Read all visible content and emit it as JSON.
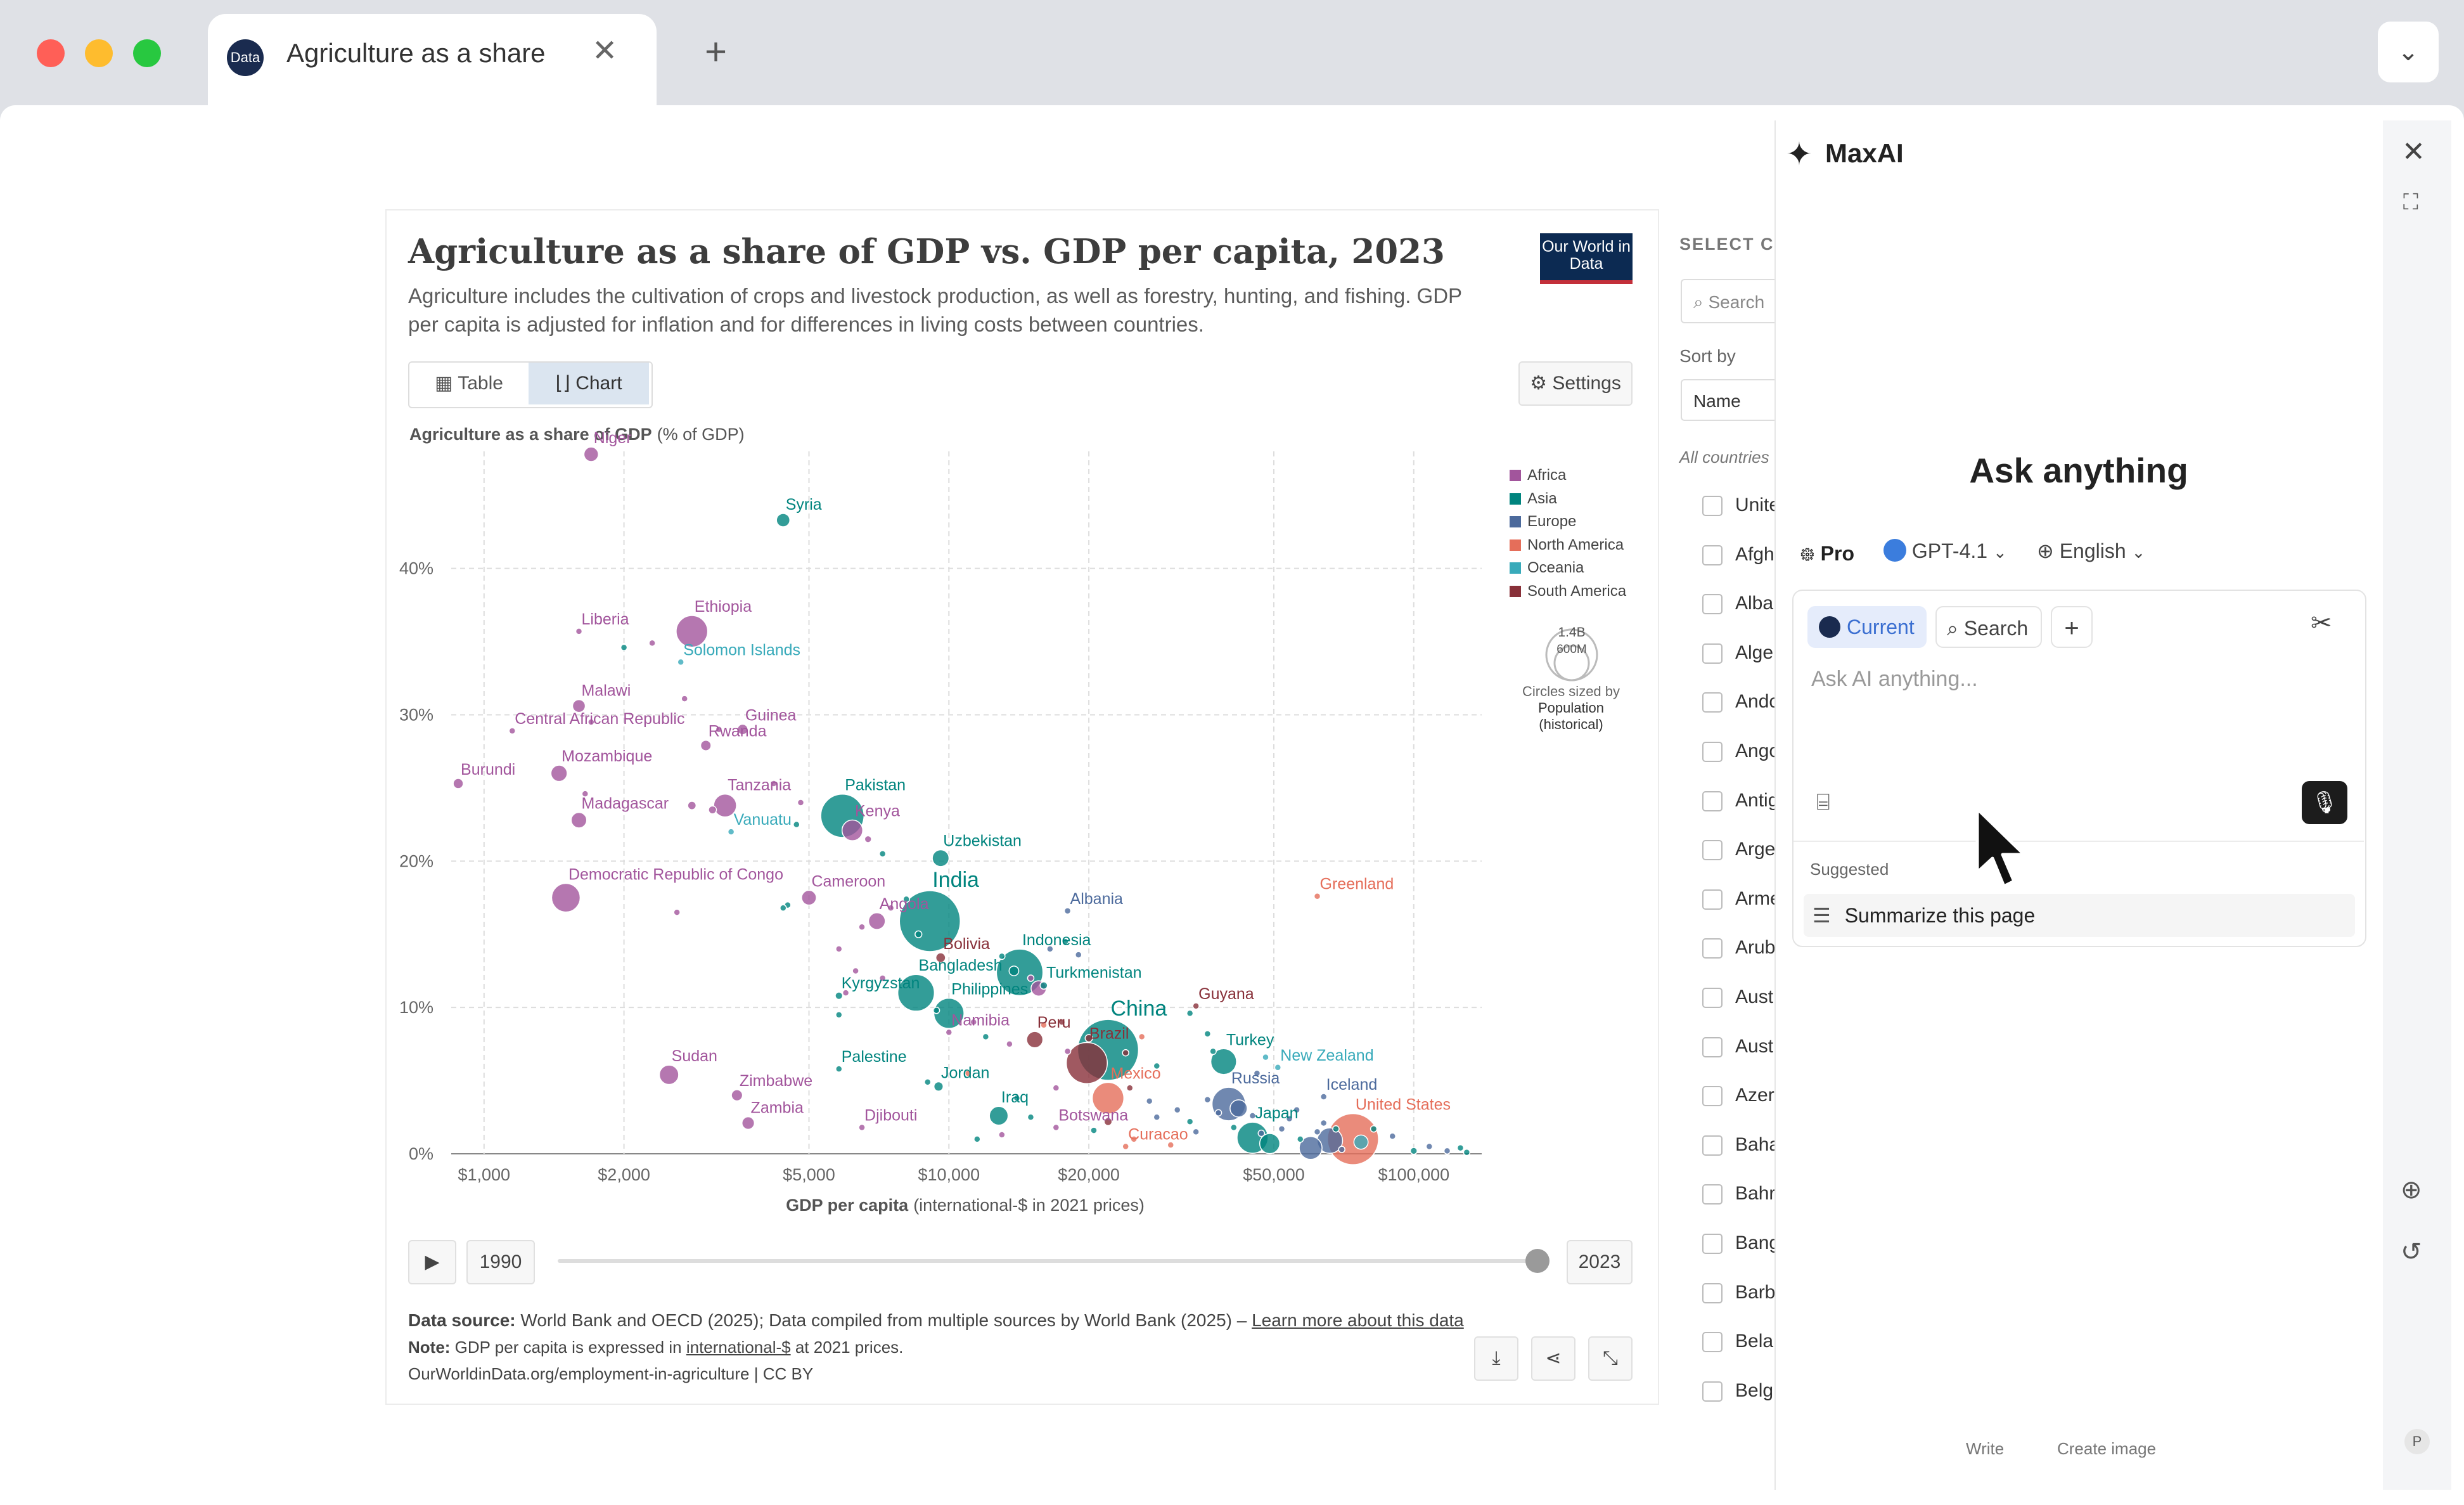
{
  "browser": {
    "tab_title": "Agriculture as a share",
    "favicon_text": "Data",
    "colors": {
      "close": "#ff5f57",
      "minimize": "#febc2e",
      "maximize": "#28c840"
    }
  },
  "owid": {
    "title": "Agriculture as a share of GDP vs. GDP per capita, 2023",
    "subtitle": "Agriculture includes the cultivation of crops and livestock production, as well as forestry, hunting, and fishing. GDP per capita is adjusted for inflation and for differences in living costs between countries.",
    "logo": "Our World in Data",
    "tabs": {
      "table": "Table",
      "chart": "Chart"
    },
    "settings": "Settings",
    "timeline": {
      "start": "1990",
      "end": "2023",
      "progress": 1.0
    },
    "footer": {
      "source_label": "Data source:",
      "source_text": "World Bank and OECD (2025); Data compiled from multiple sources by World Bank (2025) – ",
      "learn_more": "Learn more about this data",
      "note_label": "Note:",
      "note_text_1": "GDP per capita is expressed in ",
      "note_link": "international-$",
      "note_text_2": " at 2021 prices.",
      "url": "OurWorldinData.org/employment-in-agriculture | CC BY"
    },
    "legend_size": {
      "top": "1.4B",
      "bottom": "600M",
      "caption_1": "Circles sized by",
      "caption_2": "Population",
      "caption_3": "(historical)"
    },
    "sidebar": {
      "heading": "SELECT CO",
      "search": "Search",
      "sort_label": "Sort by",
      "sort_value": "Name",
      "all_label": "All countries",
      "countries": [
        "Unite",
        "Afgh",
        "Alba",
        "Alge",
        "Ando",
        "Ango",
        "Antig",
        "Arge",
        "Arme",
        "Arub",
        "Aust",
        "Aust",
        "Azer",
        "Baha",
        "Bahr",
        "Bang",
        "Barb",
        "Belar",
        "Belgi"
      ]
    }
  },
  "maxai": {
    "brand": "MaxAI",
    "heading": "Ask anything",
    "mode": "Pro",
    "model": "GPT-4.1",
    "language": "English",
    "chip_current": "Current",
    "chip_search": "Search",
    "placeholder": "Ask AI anything...",
    "suggested_label": "Suggested",
    "suggestion": "Summarize this page",
    "bottom_write": "Write",
    "bottom_image": "Create image",
    "avatar_letter": "P"
  },
  "chart_data": {
    "type": "scatter",
    "title": "Agriculture as a share of GDP vs. GDP per capita, 2023",
    "ylabel": "Agriculture as a share of GDP",
    "ylabel_unit": "(% of GDP)",
    "xlabel": "GDP per capita",
    "xlabel_unit": "(international-$ in 2021 prices)",
    "x_scale": "log",
    "xlim": [
      850,
      140000
    ],
    "ylim": [
      0,
      48
    ],
    "x_ticks": [
      {
        "v": 1000,
        "label": "$1,000"
      },
      {
        "v": 2000,
        "label": "$2,000"
      },
      {
        "v": 5000,
        "label": "$5,000"
      },
      {
        "v": 10000,
        "label": "$10,000"
      },
      {
        "v": 20000,
        "label": "$20,000"
      },
      {
        "v": 50000,
        "label": "$50,000"
      },
      {
        "v": 100000,
        "label": "$100,000"
      }
    ],
    "y_ticks": [
      {
        "v": 0,
        "label": "0%"
      },
      {
        "v": 10,
        "label": "10%"
      },
      {
        "v": 20,
        "label": "20%"
      },
      {
        "v": 30,
        "label": "30%"
      },
      {
        "v": 40,
        "label": "40%"
      }
    ],
    "grid": true,
    "legend_position": "right",
    "regions": [
      {
        "name": "Africa",
        "color": "#a2559c"
      },
      {
        "name": "Asia",
        "color": "#00847e"
      },
      {
        "name": "Europe",
        "color": "#4c6a9c"
      },
      {
        "name": "North America",
        "color": "#e56e5a"
      },
      {
        "name": "Oceania",
        "color": "#38aaba"
      },
      {
        "name": "South America",
        "color": "#883039"
      }
    ],
    "labeled_points": [
      {
        "name": "Niger",
        "x": 1700,
        "y": 47.8,
        "region": "Africa",
        "pop": 27
      },
      {
        "name": "Syria",
        "x": 4400,
        "y": 43.3,
        "region": "Asia",
        "pop": 23
      },
      {
        "name": "Liberia",
        "x": 1600,
        "y": 35.7,
        "region": "Africa",
        "pop": 5
      },
      {
        "name": "Ethiopia",
        "x": 2800,
        "y": 35.7,
        "region": "Africa",
        "pop": 128
      },
      {
        "name": "Solomon Islands",
        "x": 2650,
        "y": 33.6,
        "region": "Oceania",
        "pop": 0.8
      },
      {
        "name": "Malawi",
        "x": 1600,
        "y": 30.6,
        "region": "Africa",
        "pop": 21
      },
      {
        "name": "Central African Republic",
        "x": 1150,
        "y": 28.9,
        "region": "Africa",
        "pop": 5
      },
      {
        "name": "Guinea",
        "x": 3600,
        "y": 29.0,
        "region": "Africa",
        "pop": 14
      },
      {
        "name": "Rwanda",
        "x": 3000,
        "y": 27.9,
        "region": "Africa",
        "pop": 14
      },
      {
        "name": "Burundi",
        "x": 880,
        "y": 25.3,
        "region": "Africa",
        "pop": 13
      },
      {
        "name": "Mozambique",
        "x": 1450,
        "y": 26.0,
        "region": "Africa",
        "pop": 34
      },
      {
        "name": "Tanzania",
        "x": 3300,
        "y": 23.8,
        "region": "Africa",
        "pop": 67
      },
      {
        "name": "Pakistan",
        "x": 5900,
        "y": 23.1,
        "region": "Asia",
        "pop": 240
      },
      {
        "name": "Madagascar",
        "x": 1600,
        "y": 22.8,
        "region": "Africa",
        "pop": 31
      },
      {
        "name": "Kenya",
        "x": 6200,
        "y": 22.1,
        "region": "Africa",
        "pop": 55
      },
      {
        "name": "Vanuatu",
        "x": 3400,
        "y": 22.0,
        "region": "Oceania",
        "pop": 0.3
      },
      {
        "name": "Uzbekistan",
        "x": 9600,
        "y": 20.2,
        "region": "Asia",
        "pop": 36
      },
      {
        "name": "India",
        "x": 9100,
        "y": 15.9,
        "region": "Asia",
        "pop": 1430
      },
      {
        "name": "Democratic Republic of Congo",
        "x": 1500,
        "y": 17.5,
        "region": "Africa",
        "pop": 105
      },
      {
        "name": "Cameroon",
        "x": 5000,
        "y": 17.5,
        "region": "Africa",
        "pop": 28
      },
      {
        "name": "Albania",
        "x": 18000,
        "y": 16.6,
        "region": "Europe",
        "pop": 2.8
      },
      {
        "name": "Greenland",
        "x": 62000,
        "y": 17.6,
        "region": "North America",
        "pop": 0.06
      },
      {
        "name": "Angola",
        "x": 7000,
        "y": 15.9,
        "region": "Africa",
        "pop": 36
      },
      {
        "name": "Bolivia",
        "x": 9600,
        "y": 13.4,
        "region": "South America",
        "pop": 12
      },
      {
        "name": "Indonesia",
        "x": 14200,
        "y": 12.4,
        "region": "Asia",
        "pop": 278
      },
      {
        "name": "Bangladesh",
        "x": 8500,
        "y": 11.0,
        "region": "Asia",
        "pop": 172
      },
      {
        "name": "Turkmenistan",
        "x": 16000,
        "y": 11.5,
        "region": "Asia",
        "pop": 7
      },
      {
        "name": "Kyrgyzstan",
        "x": 5800,
        "y": 10.8,
        "region": "Asia",
        "pop": 7
      },
      {
        "name": "Philippines",
        "x": 10000,
        "y": 9.6,
        "region": "Asia",
        "pop": 117
      },
      {
        "name": "China",
        "x": 22000,
        "y": 7.1,
        "region": "Asia",
        "pop": 1420
      },
      {
        "name": "Guyana",
        "x": 34000,
        "y": 10.1,
        "region": "South America",
        "pop": 0.8
      },
      {
        "name": "Namibia",
        "x": 10000,
        "y": 8.3,
        "region": "Africa",
        "pop": 3
      },
      {
        "name": "Peru",
        "x": 15300,
        "y": 7.8,
        "region": "South America",
        "pop": 34
      },
      {
        "name": "Brazil",
        "x": 19800,
        "y": 6.2,
        "region": "South America",
        "pop": 216
      },
      {
        "name": "Turkey",
        "x": 39000,
        "y": 6.3,
        "region": "Asia",
        "pop": 85
      },
      {
        "name": "New Zealand",
        "x": 51000,
        "y": 5.9,
        "region": "Oceania",
        "pop": 5
      },
      {
        "name": "Sudan",
        "x": 2500,
        "y": 5.4,
        "region": "Africa",
        "pop": 48
      },
      {
        "name": "Palestine",
        "x": 5800,
        "y": 5.8,
        "region": "Asia",
        "pop": 5
      },
      {
        "name": "Jordan",
        "x": 9500,
        "y": 4.6,
        "region": "Asia",
        "pop": 11
      },
      {
        "name": "Mexico",
        "x": 22000,
        "y": 3.8,
        "region": "North America",
        "pop": 128
      },
      {
        "name": "Russia",
        "x": 40000,
        "y": 3.4,
        "region": "Europe",
        "pop": 144
      },
      {
        "name": "Iceland",
        "x": 64000,
        "y": 3.9,
        "region": "Europe",
        "pop": 0.4
      },
      {
        "name": "Zimbabwe",
        "x": 3500,
        "y": 4.0,
        "region": "Africa",
        "pop": 16
      },
      {
        "name": "Zambia",
        "x": 3700,
        "y": 2.1,
        "region": "Africa",
        "pop": 20
      },
      {
        "name": "Iraq",
        "x": 12800,
        "y": 2.6,
        "region": "Asia",
        "pop": 45
      },
      {
        "name": "Djibouti",
        "x": 6500,
        "y": 1.8,
        "region": "Africa",
        "pop": 1.1
      },
      {
        "name": "Botswana",
        "x": 17000,
        "y": 1.8,
        "region": "Africa",
        "pop": 2.7
      },
      {
        "name": "United States",
        "x": 74000,
        "y": 1.0,
        "region": "North America",
        "pop": 335
      },
      {
        "name": "Japan",
        "x": 45000,
        "y": 1.1,
        "region": "Asia",
        "pop": 124
      },
      {
        "name": "Curacao",
        "x": 24000,
        "y": 0.5,
        "region": "North America",
        "pop": 0.2
      }
    ],
    "unlabeled_points": [
      [
        2000,
        34.6,
        "Asia",
        5
      ],
      [
        2300,
        34.9,
        "Africa",
        3
      ],
      [
        2700,
        31.1,
        "Africa",
        4
      ],
      [
        1700,
        29.5,
        "Africa",
        3
      ],
      [
        3200,
        29.0,
        "Africa",
        3
      ],
      [
        1650,
        24.6,
        "Africa",
        3
      ],
      [
        3100,
        23.5,
        "Africa",
        8
      ],
      [
        2800,
        23.8,
        "Africa",
        9
      ],
      [
        4200,
        25.3,
        "Africa",
        5
      ],
      [
        4800,
        24.0,
        "Africa",
        4
      ],
      [
        6700,
        21.5,
        "Africa",
        6
      ],
      [
        4700,
        22.5,
        "Asia",
        4
      ],
      [
        7200,
        20.5,
        "Asia",
        3
      ],
      [
        2600,
        16.5,
        "Africa",
        4
      ],
      [
        4500,
        17.0,
        "Asia",
        3
      ],
      [
        4400,
        16.8,
        "Asia",
        3
      ],
      [
        5800,
        14.0,
        "Africa",
        3
      ],
      [
        6500,
        15.5,
        "Africa",
        4
      ],
      [
        7500,
        16.8,
        "Africa",
        3
      ],
      [
        8100,
        17.4,
        "Asia",
        3
      ],
      [
        8600,
        15.0,
        "Asia",
        6
      ],
      [
        6000,
        11.0,
        "Africa",
        4
      ],
      [
        6300,
        12.5,
        "Africa",
        3
      ],
      [
        7200,
        12.0,
        "Africa",
        3
      ],
      [
        13000,
        13.5,
        "Asia",
        4
      ],
      [
        13800,
        12.5,
        "Asia",
        12
      ],
      [
        15000,
        12.0,
        "Africa",
        5
      ],
      [
        15600,
        11.3,
        "Africa",
        30
      ],
      [
        16500,
        14.0,
        "Europe",
        3
      ],
      [
        17800,
        14.5,
        "Asia",
        3
      ],
      [
        19000,
        13.6,
        "Europe",
        3
      ],
      [
        5800,
        9.5,
        "Asia",
        3
      ],
      [
        9400,
        9.8,
        "Asia",
        5
      ],
      [
        11300,
        9.0,
        "Africa",
        3
      ],
      [
        12000,
        8.0,
        "Asia",
        5
      ],
      [
        13500,
        7.5,
        "Africa",
        3
      ],
      [
        16000,
        8.8,
        "North America",
        4
      ],
      [
        17500,
        9.0,
        "South America",
        3
      ],
      [
        18000,
        7.0,
        "Africa",
        3
      ],
      [
        20000,
        7.9,
        "South America",
        7
      ],
      [
        24000,
        6.9,
        "South America",
        3
      ],
      [
        26000,
        8.0,
        "North America",
        4
      ],
      [
        28000,
        6.0,
        "Asia",
        4
      ],
      [
        33000,
        9.6,
        "Asia",
        3
      ],
      [
        36000,
        8.2,
        "Asia",
        3
      ],
      [
        37000,
        7.0,
        "Asia",
        4
      ],
      [
        46000,
        5.5,
        "Europe",
        3
      ],
      [
        48000,
        6.6,
        "Oceania",
        3
      ],
      [
        9000,
        4.9,
        "Asia",
        3
      ],
      [
        11000,
        5.5,
        "North America",
        3
      ],
      [
        14000,
        3.8,
        "Asia",
        4
      ],
      [
        17000,
        4.5,
        "Africa",
        3
      ],
      [
        15000,
        2.5,
        "Asia",
        4
      ],
      [
        22000,
        2.2,
        "South America",
        8
      ],
      [
        24500,
        4.5,
        "South America",
        3
      ],
      [
        27000,
        3.6,
        "Europe",
        3
      ],
      [
        28000,
        2.5,
        "Europe",
        4
      ],
      [
        31000,
        3.0,
        "Europe",
        3
      ],
      [
        33000,
        2.2,
        "Asia",
        3
      ],
      [
        34000,
        1.5,
        "Europe",
        3
      ],
      [
        36000,
        3.7,
        "Europe",
        4
      ],
      [
        38000,
        2.8,
        "Europe",
        4
      ],
      [
        41000,
        1.8,
        "Asia",
        4
      ],
      [
        42000,
        3.1,
        "Europe",
        38
      ],
      [
        45000,
        2.6,
        "Europe",
        3
      ],
      [
        47000,
        1.4,
        "Europe",
        3
      ],
      [
        49000,
        0.7,
        "Asia",
        52
      ],
      [
        52000,
        1.7,
        "Europe",
        3
      ],
      [
        54000,
        2.4,
        "Europe",
        4
      ],
      [
        56000,
        3.0,
        "Europe",
        3
      ],
      [
        57000,
        1.0,
        "Asia",
        5
      ],
      [
        60000,
        0.4,
        "Europe",
        67
      ],
      [
        62000,
        1.5,
        "Europe",
        3
      ],
      [
        64000,
        2.1,
        "Europe",
        4
      ],
      [
        66000,
        0.9,
        "Europe",
        83
      ],
      [
        68000,
        1.7,
        "Asia",
        3
      ],
      [
        70000,
        0.3,
        "Europe",
        5
      ],
      [
        77000,
        0.8,
        "Oceania",
        26
      ],
      [
        82000,
        1.7,
        "Asia",
        3
      ],
      [
        90000,
        1.2,
        "Europe",
        3
      ],
      [
        100000,
        0.2,
        "Asia",
        6
      ],
      [
        108000,
        0.5,
        "Europe",
        3
      ],
      [
        118000,
        0.2,
        "Europe",
        3
      ],
      [
        126000,
        0.4,
        "Asia",
        3
      ],
      [
        130000,
        0.1,
        "Asia",
        3
      ],
      [
        13000,
        1.3,
        "Africa",
        3
      ],
      [
        11500,
        1.0,
        "Asia",
        3
      ],
      [
        25000,
        1.0,
        "North America",
        3
      ],
      [
        30000,
        0.6,
        "North America",
        3
      ],
      [
        20500,
        1.6,
        "Asia",
        3
      ]
    ]
  }
}
